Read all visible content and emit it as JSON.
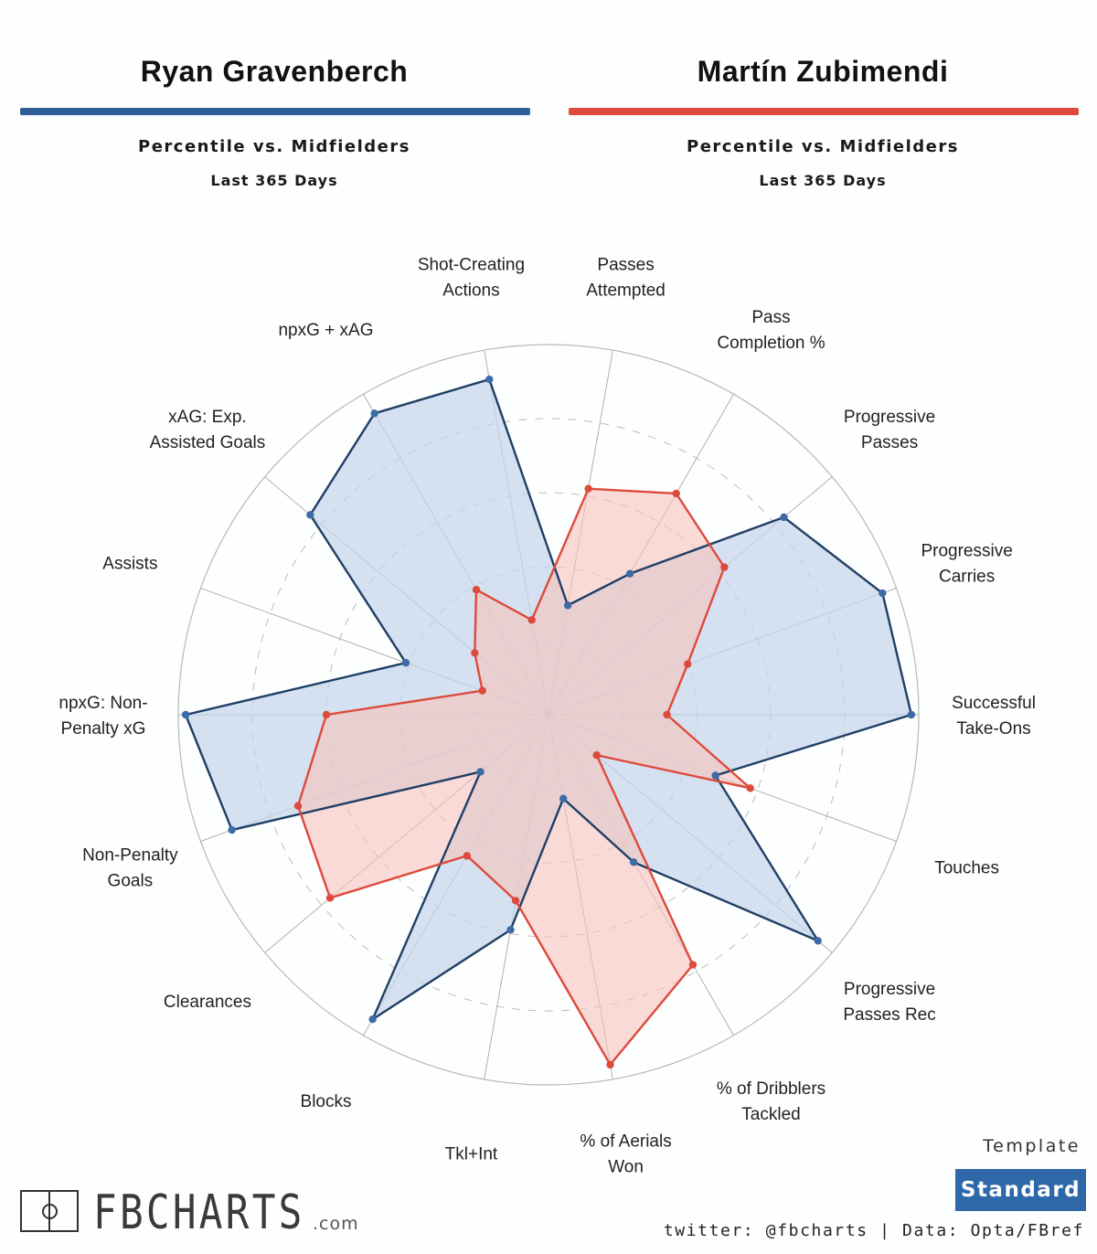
{
  "players": [
    {
      "name": "Ryan Gravenberch",
      "color": "#2f5f98",
      "fill": "#c5d6ea",
      "subtitle": "Percentile vs. Midfielders",
      "period": "Last 365 Days"
    },
    {
      "name": "Martín Zubimendi",
      "color": "#dd4a3c",
      "fill": "#f7c4be",
      "subtitle": "Percentile vs. Midfielders",
      "period": "Last 365 Days"
    }
  ],
  "footer": {
    "logo_text": "FBCHARTS",
    "logo_suffix": ".com",
    "template_label": "Template",
    "template_value": "Standard",
    "credits": "twitter: @fbcharts | Data: Opta/FBref"
  },
  "chart_data": {
    "type": "radar",
    "title": "Ryan Gravenberch vs Martín Zubimendi — Percentile vs. Midfielders, Last 365 Days",
    "range": [
      0,
      100
    ],
    "gridlines": [
      20,
      40,
      60,
      80,
      100
    ],
    "categories": [
      "Passes Attempted",
      "Pass Completion %",
      "Progressive Passes",
      "Progressive Carries",
      "Successful Take-Ons",
      "Touches",
      "Progressive Passes Rec",
      "% of Dribblers Tackled",
      "% of Aerials Won",
      "Tkl+Int",
      "Blocks",
      "Clearances",
      "Non-Penalty Goals",
      "npxG: Non-Penalty xG",
      "Assists",
      "xAG: Exp. Assisted Goals",
      "npxG + xAG",
      "Shot-Creating Actions"
    ],
    "category_lines": [
      [
        "Passes",
        "Attempted"
      ],
      [
        "Pass",
        "Completion %"
      ],
      [
        "Progressive",
        "Passes"
      ],
      [
        "Progressive",
        "Carries"
      ],
      [
        "Successful",
        "Take-Ons"
      ],
      [
        "Touches"
      ],
      [
        "Progressive",
        "Passes Rec"
      ],
      [
        "% of Dribblers",
        "Tackled"
      ],
      [
        "% of Aerials",
        "Won"
      ],
      [
        "Tkl+Int"
      ],
      [
        "Blocks"
      ],
      [
        "Clearances"
      ],
      [
        "Non-Penalty",
        "Goals"
      ],
      [
        "npxG: Non-",
        "Penalty xG"
      ],
      [
        "Assists"
      ],
      [
        "xAG: Exp.",
        "Assisted Goals"
      ],
      [
        "npxG + xAG"
      ],
      [
        "Shot-Creating",
        "Actions"
      ]
    ],
    "series": [
      {
        "name": "Ryan Gravenberch",
        "color": "#2f5f98",
        "values": [
          30,
          44,
          83,
          96,
          98,
          48,
          95,
          46,
          23,
          59,
          95,
          24,
          91,
          98,
          41,
          84,
          94,
          92
        ]
      },
      {
        "name": "Martín Zubimendi",
        "color": "#dd4a3c",
        "values": [
          62,
          69,
          62,
          40,
          32,
          58,
          17,
          78,
          96,
          51,
          44,
          77,
          72,
          60,
          19,
          26,
          39,
          26
        ]
      }
    ]
  }
}
